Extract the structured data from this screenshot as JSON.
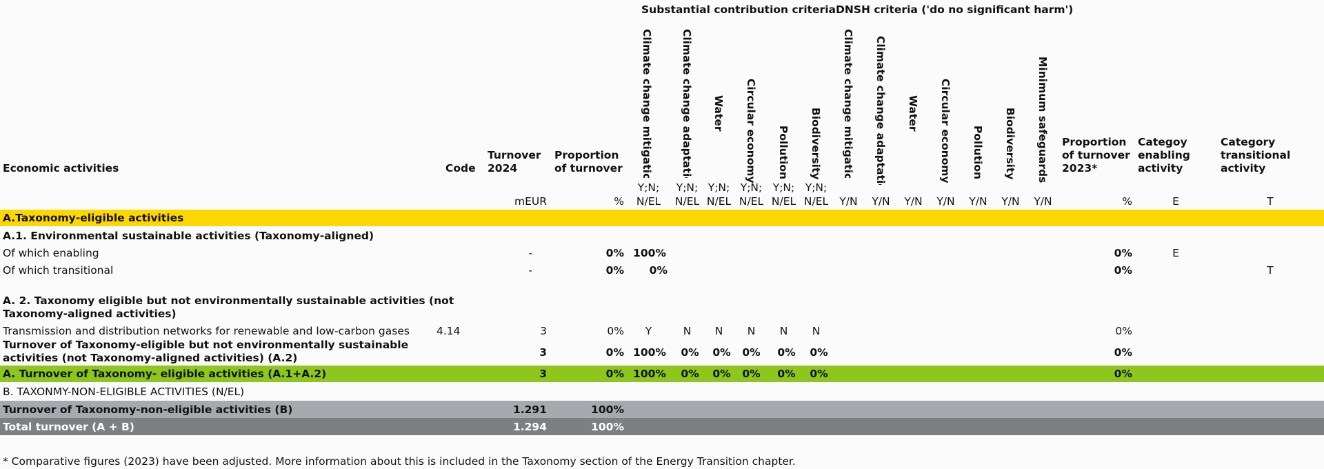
{
  "groups": {
    "substantial": "Substantial contribution criteria",
    "dnsh": "DNSH criteria ('do no significant harm')"
  },
  "headers": {
    "economic_activities": "Economic activities",
    "code": "Code",
    "turnover": [
      "Turnover",
      "2024"
    ],
    "proportion": [
      "Proportion",
      "of turnover"
    ],
    "sc_columns": [
      "Climate change mitigation",
      "Climate change adaptation",
      "Water",
      "Circular economy",
      "Pollution",
      "Biodiversity"
    ],
    "dnsh_columns": [
      "Climate change mitigation",
      "Climate change adaptation",
      "Water",
      "Circular economy",
      "Pollution",
      "Biodiversity",
      "Minimum safeguards"
    ],
    "proportion_2023": [
      "Proportion",
      "of turnover",
      "2023*"
    ],
    "enabling": [
      "Categoy",
      "enabling",
      "activity"
    ],
    "transitional": [
      "Category",
      "transitional",
      "activity"
    ]
  },
  "units": {
    "turnover": "mEUR",
    "proportion": "%",
    "sc": [
      "Y;N;",
      "N/EL"
    ],
    "dnsh": "Y/N",
    "proportion_2023": "%",
    "enabling": "E",
    "transitional": "T"
  },
  "section_a": {
    "label": "A.Taxonomy-eligible activities",
    "color": "#ffd700"
  },
  "a1": {
    "title": "A.1. Environmental sustainable activities (Taxonomy-aligned)",
    "rows": [
      {
        "activity": "Of which enabling",
        "turnover": "-",
        "proportion": "0%",
        "sc1": "100%",
        "prop2023": "0%",
        "enabling": "E",
        "transitional": ""
      },
      {
        "activity": "Of which transitional",
        "turnover": "-",
        "proportion": "0%",
        "sc1": "0%",
        "prop2023": "0%",
        "enabling": "",
        "transitional": "T"
      }
    ]
  },
  "a2": {
    "title": [
      "A. 2. Taxonomy eligible but not environmentally sustainable activities (not",
      "Taxonomy-aligned activities)"
    ],
    "row": {
      "activity": "Transmission and distribution networks for renewable and low-carbon gases",
      "code": "4.14",
      "turnover": "3",
      "proportion": "0%",
      "sc": [
        "Y",
        "N",
        "N",
        "N",
        "N",
        "N"
      ],
      "prop2023": "0%"
    },
    "subtotal": {
      "label": [
        "Turnover of Taxonomy-eligible but not environmentally sustainable",
        "activities (not Taxonomy-aligned activities) (A.2)"
      ],
      "turnover": "3",
      "proportion": "0%",
      "sc": [
        "100%",
        "0%",
        "0%",
        "0%",
        "0%",
        "0%"
      ],
      "prop2023": "0%"
    }
  },
  "total_a": {
    "label": "A. Turnover of Taxonomy- eligible activities (A.1+A.2)",
    "turnover": "3",
    "proportion": "0%",
    "sc": [
      "100%",
      "0%",
      "0%",
      "0%",
      "0%",
      "0%"
    ],
    "prop2023": "0%",
    "color": "#8dc71e"
  },
  "section_b": {
    "label": "B. TAXONMY-NON-ELIGIBLE ACTIVITIES (N/EL)"
  },
  "b_row": {
    "label": "Turnover of Taxonomy-non-eligible activities (B)",
    "turnover": "1.291",
    "proportion": "100%",
    "color": "#a6a9ae"
  },
  "total": {
    "label": "Total turnover (A + B)",
    "turnover": "1.294",
    "proportion": "100%",
    "color": "#7d7f82"
  },
  "footnote": "* Comparative figures (2023) have been adjusted. More information about this is included in the Taxonomy section of the Energy Transition chapter."
}
